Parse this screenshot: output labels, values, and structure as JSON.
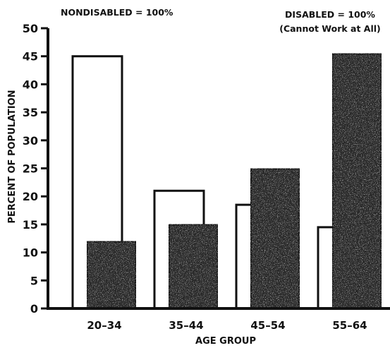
{
  "chart_data": {
    "type": "bar",
    "title": "",
    "xlabel": "AGE GROUP",
    "ylabel": "PERCENT OF POPULATION",
    "categories": [
      "20–34",
      "35–44",
      "45–54",
      "55–64"
    ],
    "ylim": [
      0,
      50
    ],
    "yticks": [
      0,
      5,
      10,
      15,
      20,
      25,
      30,
      35,
      40,
      45,
      50
    ],
    "grid": false,
    "series": [
      {
        "name": "NONDISABLED = 100%",
        "values": [
          45,
          21,
          18.5,
          14.5
        ],
        "fill": "#ffffff"
      },
      {
        "name": "DISABLED = 100%",
        "values": [
          12,
          15,
          25,
          45.5
        ],
        "fill": "#2a2a2a"
      }
    ],
    "annotations": {
      "left": "NONDISABLED = 100%",
      "right_line1": "DISABLED = 100%",
      "right_line2": "(Cannot Work at All)"
    }
  }
}
